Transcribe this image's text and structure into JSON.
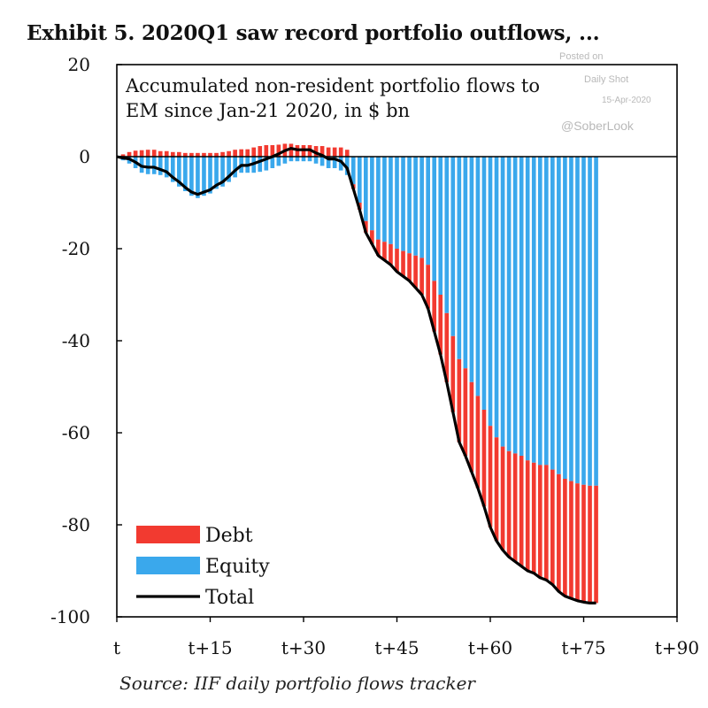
{
  "title": "Exhibit 5. 2020Q1 saw record portfolio outflows, ...",
  "watermark": {
    "line1": "Posted on",
    "line2": "Daily Shot",
    "line3": "15-Apr-2020",
    "line4": "@SoberLook"
  },
  "source": "Source: IIF daily portfolio flows tracker",
  "colors": {
    "debt": "#f23a30",
    "equity": "#3aa8ec",
    "total": "#000000"
  },
  "chart_data": {
    "type": "bar",
    "subtitle_line1": "Accumulated non-resident portfolio flows to",
    "subtitle_line2": "EM since Jan-21 2020, in $ bn",
    "ylim": [
      -100,
      20
    ],
    "y_ticks": [
      20,
      0,
      -20,
      -40,
      -60,
      -80,
      -100
    ],
    "xlim": [
      0,
      90
    ],
    "x_ticks": [
      0,
      15,
      30,
      45,
      60,
      75,
      90
    ],
    "x_tick_labels": [
      "t",
      "t+15",
      "t+30",
      "t+45",
      "t+60",
      "t+75",
      "t+90"
    ],
    "legend_position": "bottom-left",
    "legend": [
      "Debt",
      "Equity",
      "Total"
    ],
    "x": [
      1,
      2,
      3,
      4,
      5,
      6,
      7,
      8,
      9,
      10,
      11,
      12,
      13,
      14,
      15,
      16,
      17,
      18,
      19,
      20,
      21,
      22,
      23,
      24,
      25,
      26,
      27,
      28,
      29,
      30,
      31,
      32,
      33,
      34,
      35,
      36,
      37,
      38,
      39,
      40,
      41,
      42,
      43,
      44,
      45,
      46,
      47,
      48,
      49,
      50,
      51,
      52,
      53,
      54,
      55,
      56,
      57,
      58,
      59,
      60,
      61,
      62,
      63,
      64,
      65,
      66,
      67,
      68,
      69,
      70,
      71,
      72,
      73,
      74,
      75,
      76,
      77
    ],
    "series": [
      {
        "name": "Debt",
        "values": [
          0.5,
          1.0,
          1.3,
          1.4,
          1.5,
          1.5,
          1.2,
          1.2,
          1.0,
          1.0,
          0.8,
          0.8,
          0.8,
          0.8,
          0.8,
          0.8,
          1.0,
          1.2,
          1.5,
          1.6,
          1.6,
          2.0,
          2.3,
          2.5,
          2.5,
          2.6,
          2.8,
          2.8,
          2.5,
          2.5,
          2.5,
          2.3,
          2.3,
          2.0,
          2.0,
          2.0,
          1.5,
          -1.0,
          -1.5,
          -2.5,
          -3.0,
          -3.5,
          -4.0,
          -4.5,
          -5.0,
          -5.5,
          -6.0,
          -7.0,
          -8.0,
          -9.5,
          -11.0,
          -13.0,
          -15.0,
          -16.5,
          -18.0,
          -19.0,
          -19.5,
          -20.0,
          -21.0,
          -22.0,
          -22.5,
          -22.5,
          -23.0,
          -23.5,
          -24.0,
          -24.0,
          -24.0,
          -24.5,
          -25.0,
          -25.0,
          -25.5,
          -25.5,
          -25.5,
          -25.5,
          -25.5,
          -25.5,
          -25.5
        ]
      },
      {
        "name": "Equity",
        "values": [
          -0.8,
          -1.5,
          -2.5,
          -3.5,
          -3.8,
          -3.8,
          -4.0,
          -4.5,
          -5.5,
          -6.5,
          -7.5,
          -8.5,
          -9.0,
          -8.5,
          -8.0,
          -7.0,
          -6.5,
          -5.5,
          -4.5,
          -3.5,
          -3.5,
          -3.5,
          -3.3,
          -3.0,
          -2.5,
          -2.0,
          -1.5,
          -1.0,
          -1.0,
          -1.0,
          -1.0,
          -1.5,
          -2.0,
          -2.5,
          -2.5,
          -3.0,
          -4.0,
          -6.0,
          -10.0,
          -14.0,
          -16.0,
          -18.0,
          -18.5,
          -19.0,
          -20.0,
          -20.5,
          -21.0,
          -21.5,
          -22.0,
          -23.5,
          -27.0,
          -30.0,
          -34.0,
          -39.0,
          -44.0,
          -46.0,
          -49.0,
          -52.0,
          -55.0,
          -58.5,
          -61.0,
          -63.0,
          -64.0,
          -64.5,
          -65.0,
          -66.0,
          -66.5,
          -67.0,
          -67.0,
          -68.0,
          -69.0,
          -70.0,
          -70.5,
          -71.0,
          -71.3,
          -71.5,
          -71.5
        ]
      },
      {
        "name": "Total",
        "values": [
          -0.3,
          -0.5,
          -1.2,
          -2.1,
          -2.3,
          -2.3,
          -2.8,
          -3.3,
          -4.5,
          -5.5,
          -6.7,
          -7.7,
          -8.2,
          -7.7,
          -7.2,
          -6.2,
          -5.5,
          -4.3,
          -3.0,
          -1.9,
          -1.9,
          -1.5,
          -1.0,
          -0.5,
          0.0,
          0.6,
          1.3,
          1.8,
          1.5,
          1.5,
          1.5,
          0.8,
          0.3,
          -0.5,
          -0.5,
          -1.0,
          -2.5,
          -7.0,
          -11.5,
          -16.5,
          -19.0,
          -21.5,
          -22.5,
          -23.5,
          -25.0,
          -26.0,
          -27.0,
          -28.5,
          -30.0,
          -33.0,
          -38.0,
          -43.0,
          -49.0,
          -55.5,
          -62.0,
          -65.0,
          -68.5,
          -72.0,
          -76.0,
          -80.5,
          -83.5,
          -85.5,
          -87.0,
          -88.0,
          -89.0,
          -90.0,
          -90.5,
          -91.5,
          -92.0,
          -93.0,
          -94.5,
          -95.5,
          -96.0,
          -96.5,
          -96.8,
          -97.0,
          -97.0
        ]
      }
    ]
  }
}
